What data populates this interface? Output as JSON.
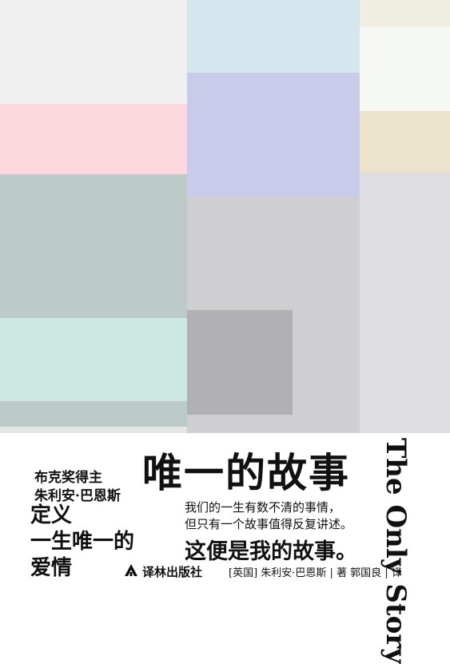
{
  "cover": {
    "title": "唯一的故事",
    "english_title": "The Only Story",
    "award": "布克奖得主",
    "author_top": "朱利安·巴恩斯",
    "tagline_lines": [
      "定义",
      "一生唯一的",
      "爱情"
    ],
    "description_lines": [
      "我们的一生有数不清的事情，",
      "但只有一个故事值得反复讲述。"
    ],
    "emphasis": "这便是我的故事。",
    "publisher": "译林出版社",
    "credit": "[英国] 朱利安·巴恩斯 | 著  郭国良 | 译",
    "publisher_logo_icon": "publisher-logo-icon"
  },
  "palette": {
    "light_gray": "#f0f0f0",
    "pink": "#fad8de",
    "sage": "#bccbc8",
    "mint": "#cde7e1",
    "sky": "#d6e6ee",
    "periwinkle": "#c8cbea",
    "warm_gray": "#cfcfd1",
    "dark_gray": "#b1b0b4",
    "ivory": "#f5f8f3",
    "beige": "#ebe3cc",
    "cream": "#f0ede1",
    "cool_gray": "#dddde2"
  }
}
